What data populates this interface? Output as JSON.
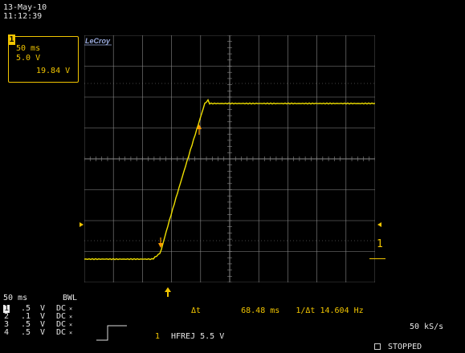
{
  "header": {
    "date": "13-May-10",
    "time": "11:12:39"
  },
  "channel_box": {
    "channel": "1",
    "timebase": "50 ms",
    "volts_div": "5.0 V",
    "level": "19.84 V"
  },
  "brand": "LeCroy",
  "marker_label": "1",
  "bottom": {
    "timebase": "50 ms",
    "bwl": "BWL",
    "channels": [
      {
        "idx": "1",
        "scale": ".5",
        "unit": "V",
        "coupling": "DC",
        "selected": true
      },
      {
        "idx": "2",
        "scale": ".1",
        "unit": "V",
        "coupling": "DC",
        "selected": false
      },
      {
        "idx": "3",
        "scale": ".5",
        "unit": "V",
        "coupling": "DC",
        "selected": false
      },
      {
        "idx": "4",
        "scale": ".5",
        "unit": "V",
        "coupling": "DC",
        "selected": false
      }
    ],
    "coupling_suffix": "x\n10",
    "measurement": {
      "label": "Δt",
      "value": "68.48 ms",
      "freq_label": "1/Δt",
      "freq_value": "14.604 Hz"
    },
    "sample_rate": "50 kS/s",
    "trigger": {
      "channel": "1",
      "mode": "HFREJ 5.5 V"
    },
    "status": "STOPPED"
  },
  "colors": {
    "trace": "#f0e000",
    "cursor": "#ff9900",
    "grid": "#8a8a8a",
    "accent": "#f0c400"
  }
}
